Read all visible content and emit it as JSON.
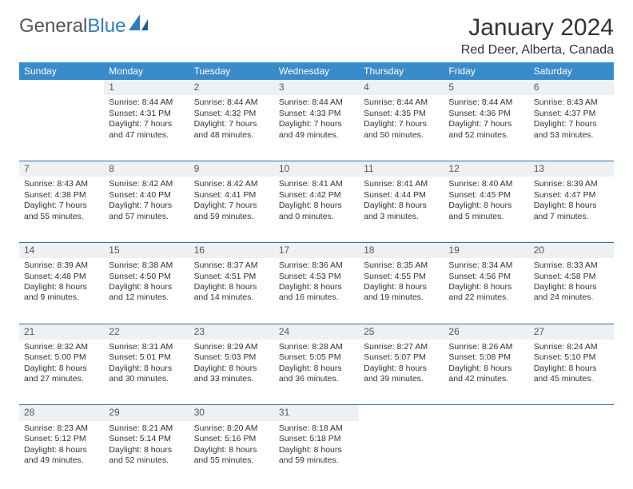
{
  "brand": {
    "part1": "General",
    "part2": "Blue"
  },
  "title": "January 2024",
  "location": "Red Deer, Alberta, Canada",
  "colors": {
    "header_bg": "#3a8bc9",
    "header_text": "#ffffff",
    "daynum_bg": "#eef1f3",
    "divider": "#2f6fa5",
    "body_text": "#333333",
    "page_bg": "#ffffff",
    "brand_gray": "#555555",
    "brand_blue": "#2f7dc0"
  },
  "typography": {
    "title_fontsize": 30,
    "location_fontsize": 16,
    "weekday_fontsize": 12,
    "daynum_fontsize": 12,
    "cell_fontsize": 10.5
  },
  "weekdays": [
    "Sunday",
    "Monday",
    "Tuesday",
    "Wednesday",
    "Thursday",
    "Friday",
    "Saturday"
  ],
  "weeks": [
    [
      null,
      {
        "d": "1",
        "sr": "Sunrise: 8:44 AM",
        "ss": "Sunset: 4:31 PM",
        "dl1": "Daylight: 7 hours",
        "dl2": "and 47 minutes."
      },
      {
        "d": "2",
        "sr": "Sunrise: 8:44 AM",
        "ss": "Sunset: 4:32 PM",
        "dl1": "Daylight: 7 hours",
        "dl2": "and 48 minutes."
      },
      {
        "d": "3",
        "sr": "Sunrise: 8:44 AM",
        "ss": "Sunset: 4:33 PM",
        "dl1": "Daylight: 7 hours",
        "dl2": "and 49 minutes."
      },
      {
        "d": "4",
        "sr": "Sunrise: 8:44 AM",
        "ss": "Sunset: 4:35 PM",
        "dl1": "Daylight: 7 hours",
        "dl2": "and 50 minutes."
      },
      {
        "d": "5",
        "sr": "Sunrise: 8:44 AM",
        "ss": "Sunset: 4:36 PM",
        "dl1": "Daylight: 7 hours",
        "dl2": "and 52 minutes."
      },
      {
        "d": "6",
        "sr": "Sunrise: 8:43 AM",
        "ss": "Sunset: 4:37 PM",
        "dl1": "Daylight: 7 hours",
        "dl2": "and 53 minutes."
      }
    ],
    [
      {
        "d": "7",
        "sr": "Sunrise: 8:43 AM",
        "ss": "Sunset: 4:38 PM",
        "dl1": "Daylight: 7 hours",
        "dl2": "and 55 minutes."
      },
      {
        "d": "8",
        "sr": "Sunrise: 8:42 AM",
        "ss": "Sunset: 4:40 PM",
        "dl1": "Daylight: 7 hours",
        "dl2": "and 57 minutes."
      },
      {
        "d": "9",
        "sr": "Sunrise: 8:42 AM",
        "ss": "Sunset: 4:41 PM",
        "dl1": "Daylight: 7 hours",
        "dl2": "and 59 minutes."
      },
      {
        "d": "10",
        "sr": "Sunrise: 8:41 AM",
        "ss": "Sunset: 4:42 PM",
        "dl1": "Daylight: 8 hours",
        "dl2": "and 0 minutes."
      },
      {
        "d": "11",
        "sr": "Sunrise: 8:41 AM",
        "ss": "Sunset: 4:44 PM",
        "dl1": "Daylight: 8 hours",
        "dl2": "and 3 minutes."
      },
      {
        "d": "12",
        "sr": "Sunrise: 8:40 AM",
        "ss": "Sunset: 4:45 PM",
        "dl1": "Daylight: 8 hours",
        "dl2": "and 5 minutes."
      },
      {
        "d": "13",
        "sr": "Sunrise: 8:39 AM",
        "ss": "Sunset: 4:47 PM",
        "dl1": "Daylight: 8 hours",
        "dl2": "and 7 minutes."
      }
    ],
    [
      {
        "d": "14",
        "sr": "Sunrise: 8:39 AM",
        "ss": "Sunset: 4:48 PM",
        "dl1": "Daylight: 8 hours",
        "dl2": "and 9 minutes."
      },
      {
        "d": "15",
        "sr": "Sunrise: 8:38 AM",
        "ss": "Sunset: 4:50 PM",
        "dl1": "Daylight: 8 hours",
        "dl2": "and 12 minutes."
      },
      {
        "d": "16",
        "sr": "Sunrise: 8:37 AM",
        "ss": "Sunset: 4:51 PM",
        "dl1": "Daylight: 8 hours",
        "dl2": "and 14 minutes."
      },
      {
        "d": "17",
        "sr": "Sunrise: 8:36 AM",
        "ss": "Sunset: 4:53 PM",
        "dl1": "Daylight: 8 hours",
        "dl2": "and 16 minutes."
      },
      {
        "d": "18",
        "sr": "Sunrise: 8:35 AM",
        "ss": "Sunset: 4:55 PM",
        "dl1": "Daylight: 8 hours",
        "dl2": "and 19 minutes."
      },
      {
        "d": "19",
        "sr": "Sunrise: 8:34 AM",
        "ss": "Sunset: 4:56 PM",
        "dl1": "Daylight: 8 hours",
        "dl2": "and 22 minutes."
      },
      {
        "d": "20",
        "sr": "Sunrise: 8:33 AM",
        "ss": "Sunset: 4:58 PM",
        "dl1": "Daylight: 8 hours",
        "dl2": "and 24 minutes."
      }
    ],
    [
      {
        "d": "21",
        "sr": "Sunrise: 8:32 AM",
        "ss": "Sunset: 5:00 PM",
        "dl1": "Daylight: 8 hours",
        "dl2": "and 27 minutes."
      },
      {
        "d": "22",
        "sr": "Sunrise: 8:31 AM",
        "ss": "Sunset: 5:01 PM",
        "dl1": "Daylight: 8 hours",
        "dl2": "and 30 minutes."
      },
      {
        "d": "23",
        "sr": "Sunrise: 8:29 AM",
        "ss": "Sunset: 5:03 PM",
        "dl1": "Daylight: 8 hours",
        "dl2": "and 33 minutes."
      },
      {
        "d": "24",
        "sr": "Sunrise: 8:28 AM",
        "ss": "Sunset: 5:05 PM",
        "dl1": "Daylight: 8 hours",
        "dl2": "and 36 minutes."
      },
      {
        "d": "25",
        "sr": "Sunrise: 8:27 AM",
        "ss": "Sunset: 5:07 PM",
        "dl1": "Daylight: 8 hours",
        "dl2": "and 39 minutes."
      },
      {
        "d": "26",
        "sr": "Sunrise: 8:26 AM",
        "ss": "Sunset: 5:08 PM",
        "dl1": "Daylight: 8 hours",
        "dl2": "and 42 minutes."
      },
      {
        "d": "27",
        "sr": "Sunrise: 8:24 AM",
        "ss": "Sunset: 5:10 PM",
        "dl1": "Daylight: 8 hours",
        "dl2": "and 45 minutes."
      }
    ],
    [
      {
        "d": "28",
        "sr": "Sunrise: 8:23 AM",
        "ss": "Sunset: 5:12 PM",
        "dl1": "Daylight: 8 hours",
        "dl2": "and 49 minutes."
      },
      {
        "d": "29",
        "sr": "Sunrise: 8:21 AM",
        "ss": "Sunset: 5:14 PM",
        "dl1": "Daylight: 8 hours",
        "dl2": "and 52 minutes."
      },
      {
        "d": "30",
        "sr": "Sunrise: 8:20 AM",
        "ss": "Sunset: 5:16 PM",
        "dl1": "Daylight: 8 hours",
        "dl2": "and 55 minutes."
      },
      {
        "d": "31",
        "sr": "Sunrise: 8:18 AM",
        "ss": "Sunset: 5:18 PM",
        "dl1": "Daylight: 8 hours",
        "dl2": "and 59 minutes."
      },
      null,
      null,
      null
    ]
  ]
}
